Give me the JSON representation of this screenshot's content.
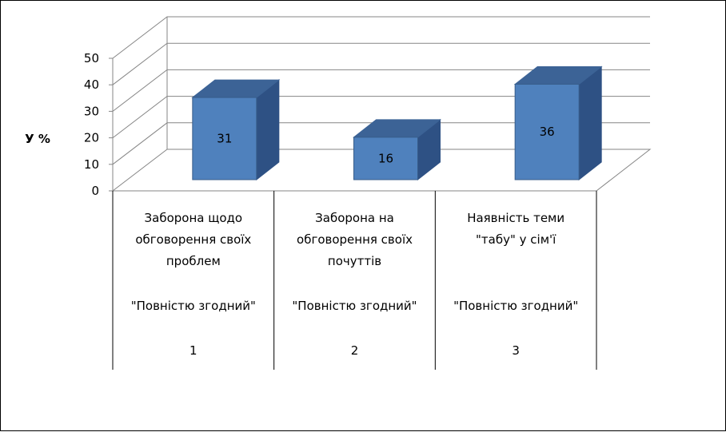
{
  "chart_data": {
    "type": "bar",
    "ylabel": "У %",
    "ylim": [
      0,
      50
    ],
    "yticks": [
      0,
      10,
      20,
      30,
      40,
      50
    ],
    "grid": true,
    "values": [
      31,
      16,
      36
    ],
    "categories": [
      {
        "lines": [
          "Заборона щодо",
          "обговорення своїх",
          "проблем"
        ],
        "sub": "\"Повністю згодний\"",
        "num": "1"
      },
      {
        "lines": [
          "Заборона на",
          "обговорення своїх",
          "почуттів"
        ],
        "sub": "\"Повністю згодний\"",
        "num": "2"
      },
      {
        "lines": [
          "Наявність теми",
          "\"табу\" у сім'ї"
        ],
        "sub": "\"Повністю згодний\"",
        "num": "3"
      }
    ],
    "colors": {
      "front": "#4f81bd",
      "top": "#3c6396",
      "side": "#2e5184",
      "edge": "#385d8a",
      "grid": "#868686"
    }
  }
}
